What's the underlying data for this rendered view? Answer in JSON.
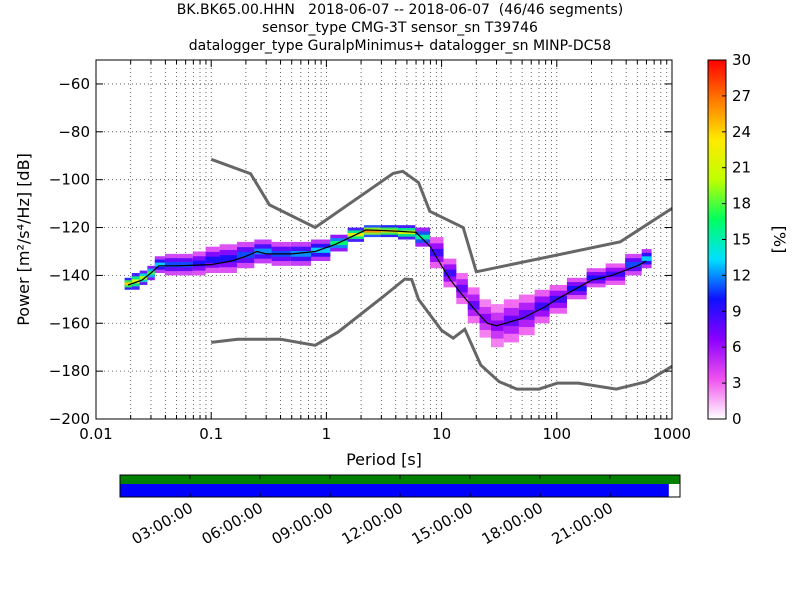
{
  "title_lines": [
    "BK.BK65.00.HHN   2018-06-07 -- 2018-06-07  (46/46 segments)",
    "sensor_type CMG-3T sensor_sn T39746",
    "datalogger_type GuralpMinimus+ datalogger_sn MINP-DC58"
  ],
  "chart_data": {
    "type": "heatmap",
    "xlabel": "Period [s]",
    "ylabel": "Power [m²/s⁴/Hz] [dB]",
    "xscale": "log",
    "xlim": [
      0.01,
      1000
    ],
    "ylim": [
      -200,
      -50
    ],
    "xticks": [
      0.01,
      0.1,
      1,
      10,
      100,
      1000
    ],
    "xtick_labels": [
      "0.01",
      "0.1",
      "1",
      "10",
      "100",
      "1000"
    ],
    "yticks": [
      -200,
      -180,
      -160,
      -140,
      -120,
      -100,
      -80,
      -60
    ],
    "ytick_labels": [
      "−200",
      "−180",
      "−160",
      "−140",
      "−120",
      "−100",
      "−80",
      "−60"
    ],
    "grid": true,
    "colorbar": {
      "label": "[%]",
      "range": [
        0,
        30
      ],
      "ticks": [
        0,
        3,
        6,
        9,
        12,
        15,
        18,
        21,
        24,
        27,
        30
      ],
      "colormap": [
        "#ffffff",
        "#f052ee",
        "#8a00ff",
        "#1010ff",
        "#00e0ff",
        "#00ff60",
        "#c0ff00",
        "#ffea00",
        "#ff7a00",
        "#ff0000"
      ]
    },
    "noise_model_high": [
      [
        0.1,
        -91.5
      ],
      [
        0.22,
        -97.5
      ],
      [
        0.32,
        -110.5
      ],
      [
        0.8,
        -120
      ],
      [
        3.8,
        -97.4
      ],
      [
        4.6,
        -96.5
      ],
      [
        6.3,
        -101.2
      ],
      [
        7.9,
        -113.2
      ],
      [
        15.4,
        -120
      ],
      [
        20,
        -138.5
      ],
      [
        354.8,
        -126
      ],
      [
        1000,
        -112
      ]
    ],
    "noise_model_low": [
      [
        0.1,
        -168
      ],
      [
        0.17,
        -166.7
      ],
      [
        0.4,
        -166.7
      ],
      [
        0.8,
        -169.2
      ],
      [
        1.26,
        -163.7
      ],
      [
        3.16,
        -148.6
      ],
      [
        4.8,
        -141.5
      ],
      [
        5.5,
        -141.7
      ],
      [
        6.3,
        -150
      ],
      [
        10,
        -163
      ],
      [
        12.6,
        -166.2
      ],
      [
        15.9,
        -162.5
      ],
      [
        21.9,
        -177.5
      ],
      [
        31.6,
        -184.4
      ],
      [
        45,
        -187.5
      ],
      [
        70,
        -187.5
      ],
      [
        101,
        -185
      ],
      [
        154,
        -185
      ],
      [
        328.1,
        -187.5
      ],
      [
        600,
        -184.4
      ],
      [
        1000,
        -178
      ]
    ],
    "mode_line": [
      [
        0.019,
        -144
      ],
      [
        0.025,
        -142
      ],
      [
        0.03,
        -139
      ],
      [
        0.035,
        -136
      ],
      [
        0.05,
        -136
      ],
      [
        0.1,
        -135.5
      ],
      [
        0.15,
        -134
      ],
      [
        0.2,
        -132
      ],
      [
        0.25,
        -130
      ],
      [
        0.3,
        -131
      ],
      [
        0.5,
        -131
      ],
      [
        0.8,
        -130
      ],
      [
        1.2,
        -127
      ],
      [
        1.8,
        -123
      ],
      [
        2.2,
        -121
      ],
      [
        4,
        -121.5
      ],
      [
        6,
        -122
      ],
      [
        8,
        -128
      ],
      [
        10,
        -136
      ],
      [
        12,
        -142
      ],
      [
        15,
        -148
      ],
      [
        20,
        -155
      ],
      [
        25,
        -160
      ],
      [
        30,
        -161
      ],
      [
        50,
        -158
      ],
      [
        80,
        -153
      ],
      [
        100,
        -150
      ],
      [
        200,
        -142
      ],
      [
        300,
        -140
      ],
      [
        500,
        -136
      ],
      [
        600,
        -134
      ]
    ],
    "density_cells": [
      {
        "x": 0.019,
        "ymin": -146,
        "ymax": -141,
        "pct": 22
      },
      {
        "x": 0.022,
        "ymin": -146,
        "ymax": -139,
        "pct": 20
      },
      {
        "x": 0.026,
        "ymin": -144,
        "ymax": -138,
        "pct": 18
      },
      {
        "x": 0.03,
        "ymin": -142,
        "ymax": -136,
        "pct": 16
      },
      {
        "x": 0.035,
        "ymin": -139,
        "ymax": -132,
        "pct": 12
      },
      {
        "x": 0.045,
        "ymin": -140,
        "ymax": -131,
        "pct": 10
      },
      {
        "x": 0.06,
        "ymin": -140,
        "ymax": -131,
        "pct": 10
      },
      {
        "x": 0.08,
        "ymin": -140,
        "ymax": -130,
        "pct": 9
      },
      {
        "x": 0.1,
        "ymin": -139,
        "ymax": -128,
        "pct": 9
      },
      {
        "x": 0.14,
        "ymin": -139,
        "ymax": -127,
        "pct": 9
      },
      {
        "x": 0.2,
        "ymin": -137,
        "ymax": -126,
        "pct": 10
      },
      {
        "x": 0.28,
        "ymin": -135,
        "ymax": -125,
        "pct": 11
      },
      {
        "x": 0.4,
        "ymin": -136,
        "ymax": -126,
        "pct": 10
      },
      {
        "x": 0.6,
        "ymin": -136,
        "ymax": -126,
        "pct": 11
      },
      {
        "x": 0.9,
        "ymin": -134,
        "ymax": -125,
        "pct": 12
      },
      {
        "x": 1.3,
        "ymin": -130,
        "ymax": -123,
        "pct": 15
      },
      {
        "x": 1.8,
        "ymin": -126,
        "ymax": -120,
        "pct": 20
      },
      {
        "x": 2.5,
        "ymin": -124,
        "ymax": -119,
        "pct": 24
      },
      {
        "x": 3.5,
        "ymin": -124,
        "ymax": -119,
        "pct": 22
      },
      {
        "x": 5,
        "ymin": -125,
        "ymax": -119,
        "pct": 20
      },
      {
        "x": 7,
        "ymin": -128,
        "ymax": -120,
        "pct": 14
      },
      {
        "x": 9,
        "ymin": -137,
        "ymax": -124,
        "pct": 8
      },
      {
        "x": 12,
        "ymin": -145,
        "ymax": -133,
        "pct": 8
      },
      {
        "x": 15,
        "ymin": -152,
        "ymax": -139,
        "pct": 7
      },
      {
        "x": 19,
        "ymin": -160,
        "ymax": -145,
        "pct": 7
      },
      {
        "x": 24,
        "ymin": -166,
        "ymax": -150,
        "pct": 6
      },
      {
        "x": 30,
        "ymin": -170,
        "ymax": -152,
        "pct": 6
      },
      {
        "x": 40,
        "ymin": -168,
        "ymax": -150,
        "pct": 7
      },
      {
        "x": 55,
        "ymin": -165,
        "ymax": -148,
        "pct": 7
      },
      {
        "x": 75,
        "ymin": -160,
        "ymax": -146,
        "pct": 8
      },
      {
        "x": 100,
        "ymin": -156,
        "ymax": -144,
        "pct": 8
      },
      {
        "x": 150,
        "ymin": -150,
        "ymax": -141,
        "pct": 9
      },
      {
        "x": 220,
        "ymin": -145,
        "ymax": -137,
        "pct": 9
      },
      {
        "x": 320,
        "ymin": -144,
        "ymax": -135,
        "pct": 8
      },
      {
        "x": 480,
        "ymin": -140,
        "ymax": -131,
        "pct": 10
      },
      {
        "x": 620,
        "ymin": -137,
        "ymax": -129,
        "pct": 12
      }
    ]
  },
  "timeline": {
    "tick_labels": [
      "03:00:00",
      "06:00:00",
      "09:00:00",
      "12:00:00",
      "15:00:00",
      "18:00:00",
      "21:00:00"
    ],
    "tick_hours": [
      3,
      6,
      9,
      12,
      15,
      18,
      21
    ],
    "hours_span": 24,
    "coverage_fraction": 0.98,
    "data_color": "#008000",
    "psd_color": "#0000ff"
  }
}
